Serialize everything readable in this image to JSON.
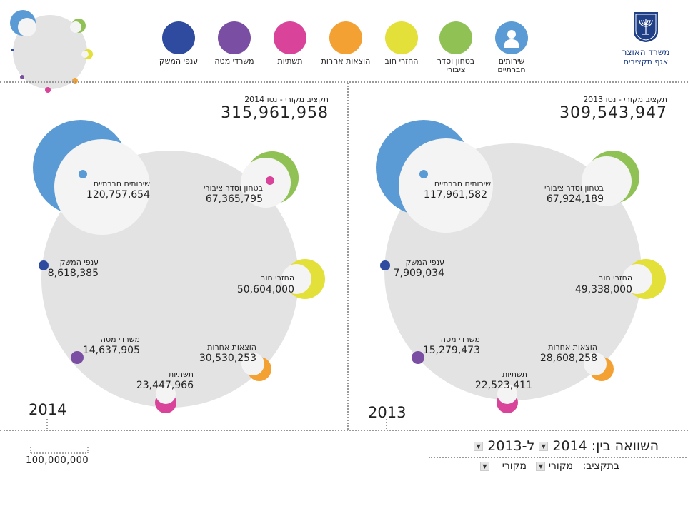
{
  "header": {
    "ministry": "משרד האוצר",
    "department": "אגף תקציבים"
  },
  "legend": [
    {
      "key": "social",
      "label": "שירותים חברתיים",
      "color": "#5b9bd5",
      "icon": "person-icon"
    },
    {
      "key": "security",
      "label": "בטחון וסדר ציבורי",
      "color": "#8fc155",
      "icon": ""
    },
    {
      "key": "debt",
      "label": "החזרי חוב",
      "color": "#e3e03a",
      "icon": ""
    },
    {
      "key": "other",
      "label": "הוצאות אחרות",
      "color": "#f3a132",
      "icon": ""
    },
    {
      "key": "infra",
      "label": "תשתיות",
      "color": "#d9449a",
      "icon": ""
    },
    {
      "key": "hq",
      "label": "משרדי מטה",
      "color": "#7a4ea3",
      "icon": ""
    },
    {
      "key": "economy",
      "label": "ענפי המשק",
      "color": "#2f4ba0",
      "icon": ""
    }
  ],
  "panels": {
    "left": {
      "year": "2014",
      "total_label": "תקציב מקורי - נטו 2014",
      "total_value": "315,961,958",
      "items": {
        "social": {
          "label": "שירותים חברתיים",
          "value": "120,757,654"
        },
        "security": {
          "label": "בטחון וסדר ציבורי",
          "value": "67,365,795"
        },
        "debt": {
          "label": "החזרי חוב",
          "value": "50,604,000"
        },
        "other": {
          "label": "הוצאות אחרות",
          "value": "30,530,253"
        },
        "infra": {
          "label": "תשתיות",
          "value": "23,447,966"
        },
        "hq": {
          "label": "משרדי מטה",
          "value": "14,637,905"
        },
        "economy": {
          "label": "ענפי המשק",
          "value": "8,618,385"
        }
      }
    },
    "right": {
      "year": "2013",
      "total_label": "תקציב מקורי - נטו 2013",
      "total_value": "309,543,947",
      "items": {
        "social": {
          "label": "שירותים חברתיים",
          "value": "117,961,582"
        },
        "security": {
          "label": "בטחון וסדר ציבורי",
          "value": "67,924,189"
        },
        "debt": {
          "label": "החזרי חוב",
          "value": "49,338,000"
        },
        "other": {
          "label": "הוצאות אחרות",
          "value": "28,608,258"
        },
        "infra": {
          "label": "תשתיות",
          "value": "22,523,411"
        },
        "hq": {
          "label": "משרדי מטה",
          "value": "15,279,473"
        },
        "economy": {
          "label": "ענפי המשק",
          "value": "7,909,034"
        }
      }
    }
  },
  "scale": {
    "value": "100,000,000"
  },
  "controls": {
    "compare_label": "השוואה בין:",
    "year_a": "2014",
    "year_b_prefix": "ל-",
    "year_b": "2013",
    "budget_label": "בתקציב:",
    "budget_a": "מקורי",
    "budget_b": "מקורי",
    "dropdown_glyph": "▼"
  },
  "chart_data": [
    {
      "type": "bubble",
      "title": "תקציב מקורי - נטו 2014",
      "year": "2014",
      "total": 315961958,
      "categories": [
        "שירותים חברתיים",
        "בטחון וסדר ציבורי",
        "החזרי חוב",
        "הוצאות אחרות",
        "תשתיות",
        "משרדי מטה",
        "ענפי המשק"
      ],
      "values": [
        120757654,
        67365795,
        50604000,
        30530253,
        23447966,
        14637905,
        8618385
      ],
      "colors": [
        "#5b9bd5",
        "#8fc155",
        "#e3e03a",
        "#f3a132",
        "#d9449a",
        "#7a4ea3",
        "#2f4ba0"
      ]
    },
    {
      "type": "bubble",
      "title": "תקציב מקורי - נטו 2013",
      "year": "2013",
      "total": 309543947,
      "categories": [
        "שירותים חברתיים",
        "בטחון וסדר ציבורי",
        "החזרי חוב",
        "הוצאות אחרות",
        "תשתיות",
        "משרדי מטה",
        "ענפי המשק"
      ],
      "values": [
        117961582,
        67924189,
        49338000,
        28608258,
        22523411,
        15279473,
        7909034
      ],
      "colors": [
        "#5b9bd5",
        "#8fc155",
        "#e3e03a",
        "#f3a132",
        "#d9449a",
        "#7a4ea3",
        "#2f4ba0"
      ]
    }
  ]
}
